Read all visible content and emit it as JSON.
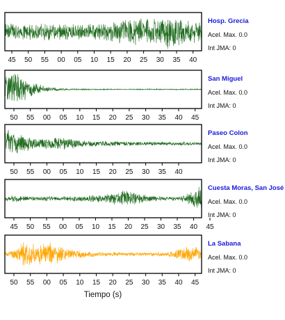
{
  "chart_data": {
    "type": "line",
    "xlabel": "Tiempo (s)",
    "panels": [
      {
        "station": "Hosp. Grecia",
        "accel_label": "Acel. Max. 0.0",
        "jma_label": "Int JMA: 0",
        "color": "#1f6b1f",
        "ticks": [
          "45",
          "50",
          "55",
          "00",
          "05",
          "10",
          "15",
          "20",
          "25",
          "30",
          "35",
          "40"
        ],
        "amplitude_envelope": [
          0.6,
          0.5,
          0.45,
          0.5,
          0.55,
          0.45,
          0.5,
          0.45,
          0.5,
          0.55,
          0.6,
          0.75,
          0.8,
          0.7,
          0.85,
          0.95,
          0.85,
          0.7,
          0.6
        ]
      },
      {
        "station": "San Miguel",
        "accel_label": "Acel. Max. 0.0",
        "jma_label": "Int JMA: 0",
        "color": "#1f6b1f",
        "ticks": [
          "50",
          "55",
          "00",
          "05",
          "10",
          "15",
          "20",
          "25",
          "30",
          "35",
          "40",
          "45"
        ],
        "amplitude_envelope": [
          0.9,
          0.95,
          0.55,
          0.3,
          0.15,
          0.08,
          0.05,
          0.04,
          0.03,
          0.03,
          0.03,
          0.03,
          0.03,
          0.03,
          0.03,
          0.03,
          0.03,
          0.03,
          0.03
        ]
      },
      {
        "station": "Paseo Colon",
        "accel_label": "Acel. Max. 0.0",
        "jma_label": "Int JMA: 0",
        "color": "#1f6b1f",
        "ticks": [
          "50",
          "55",
          "00",
          "05",
          "10",
          "15",
          "20",
          "25",
          "30",
          "35",
          "40"
        ],
        "amplitude_envelope": [
          0.95,
          0.6,
          0.45,
          0.3,
          0.35,
          0.4,
          0.3,
          0.2,
          0.18,
          0.15,
          0.15,
          0.14,
          0.13,
          0.12,
          0.12,
          0.11,
          0.11,
          0.1,
          0.1
        ]
      },
      {
        "station": "Cuesta Moras, San José",
        "accel_label": "Acel. Max. 0.0",
        "jma_label": "Int JMA: 0",
        "color": "#1f6b1f",
        "ticks": [
          "45",
          "50",
          "55",
          "00",
          "05",
          "10",
          "15",
          "20",
          "25",
          "30",
          "35",
          "40",
          "45"
        ],
        "amplitude_envelope": [
          0.15,
          0.2,
          0.12,
          0.12,
          0.15,
          0.12,
          0.18,
          0.15,
          0.2,
          0.25,
          0.35,
          0.5,
          0.35,
          0.2,
          0.15,
          0.12,
          0.15,
          0.35,
          0.9
        ]
      },
      {
        "station": "La Sabana",
        "accel_label": "Acel. Max. 0.0",
        "jma_label": "Int JMA: 0",
        "color": "#ffa500",
        "ticks": [
          "50",
          "55",
          "00",
          "05",
          "10",
          "15",
          "20",
          "25",
          "30",
          "35",
          "40",
          "45"
        ],
        "amplitude_envelope": [
          0.1,
          0.3,
          0.9,
          0.55,
          0.8,
          0.45,
          0.25,
          0.2,
          0.15,
          0.12,
          0.12,
          0.1,
          0.1,
          0.1,
          0.12,
          0.15,
          0.35,
          0.5,
          0.45
        ]
      }
    ]
  }
}
